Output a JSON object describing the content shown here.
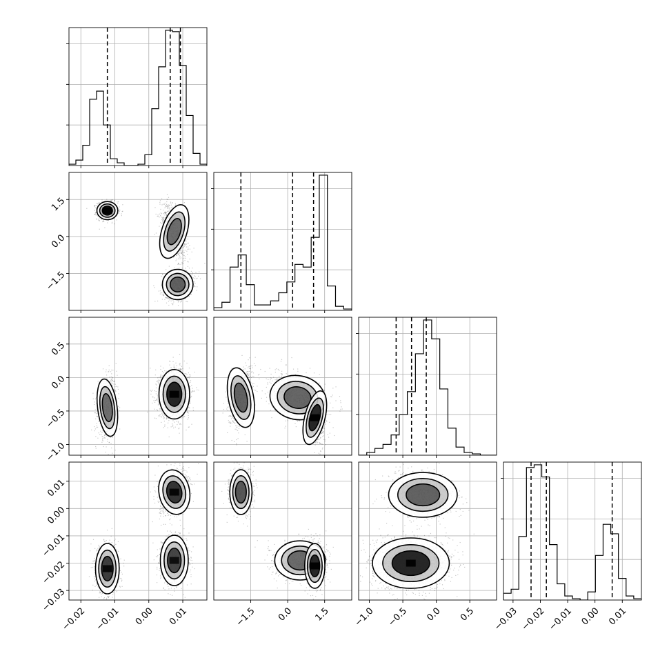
{
  "chart_data": {
    "type": "corner",
    "grid": true,
    "colors": {
      "ink": "#000000",
      "grid": "#b0b0b0",
      "background": "#ffffff"
    },
    "params": [
      {
        "range": [
          -0.0235,
          0.0171
        ],
        "ticks": [
          -0.02,
          -0.01,
          0.0,
          0.01
        ],
        "tick_labels": [
          "−0.02",
          "−0.01",
          "0.00",
          "0.01"
        ],
        "quantiles": [
          -0.0122,
          0.0063,
          0.0093
        ],
        "hist": [
          0.01,
          0.04,
          0.15,
          0.49,
          0.55,
          0.3,
          0.05,
          0.02,
          0.0,
          0.0,
          0.01,
          0.08,
          0.42,
          0.73,
          1.0,
          0.99,
          0.74,
          0.37,
          0.09,
          0.01
        ]
      },
      {
        "range": [
          -3.0,
          2.6
        ],
        "ticks": [
          -1.5,
          0.0,
          1.5
        ],
        "tick_labels": [
          "−1.5",
          "0.0",
          "1.5"
        ],
        "quantiles": [
          -1.9,
          0.2,
          1.05
        ],
        "hist": [
          0.02,
          0.06,
          0.32,
          0.41,
          0.19,
          0.04,
          0.04,
          0.07,
          0.13,
          0.21,
          0.34,
          0.32,
          0.54,
          1.0,
          0.18,
          0.03,
          0.01
        ]
      },
      {
        "range": [
          -1.16,
          0.9
        ],
        "ticks": [
          -1.0,
          -0.5,
          0.0,
          0.5
        ],
        "tick_labels": [
          "−1.0",
          "−0.5",
          "0.0",
          "0.5"
        ],
        "quantiles": [
          -0.6,
          -0.37,
          -0.15
        ],
        "hist": [
          0.0,
          0.02,
          0.05,
          0.08,
          0.15,
          0.3,
          0.47,
          0.75,
          1.0,
          0.86,
          0.49,
          0.2,
          0.06,
          0.02,
          0.01,
          0.0,
          0.0
        ]
      },
      {
        "range": [
          -0.0335,
          0.017
        ],
        "ticks": [
          -0.03,
          -0.02,
          -0.01,
          0.0,
          0.01
        ],
        "tick_labels": [
          "−0.03",
          "−0.02",
          "−0.01",
          "0.00",
          "0.01"
        ],
        "quantiles": [
          -0.0234,
          -0.0178,
          0.0063
        ],
        "hist": [
          0.05,
          0.08,
          0.47,
          0.98,
          1.0,
          0.91,
          0.41,
          0.12,
          0.03,
          0.01,
          0.0,
          0.06,
          0.33,
          0.56,
          0.49,
          0.16,
          0.03,
          0.01
        ]
      }
    ],
    "blobs": {
      "1-0": [
        {
          "mx": -0.0122,
          "my": 1.05,
          "sx": 0.0015,
          "sy": 0.18,
          "r": 0.0,
          "weight": 0.33,
          "peak": 0.95,
          "levels": 3
        },
        {
          "mx": 0.0075,
          "my": 0.2,
          "sx": 0.0018,
          "sy": 0.55,
          "r": -0.5,
          "weight": 0.35,
          "peak": 0.18,
          "levels": 2
        },
        {
          "mx": 0.0085,
          "my": -1.95,
          "sx": 0.0022,
          "sy": 0.3,
          "r": 0.2,
          "weight": 0.32,
          "peak": 0.3,
          "levels": 3
        }
      ],
      "2-0": [
        {
          "mx": -0.0122,
          "my": -0.45,
          "sx": 0.0014,
          "sy": 0.21,
          "r": 0.2,
          "weight": 0.33,
          "peak": 0.15,
          "levels": 1
        },
        {
          "mx": 0.0075,
          "my": -0.25,
          "sx": 0.0022,
          "sy": 0.18,
          "r": 0.0,
          "weight": 0.67,
          "peak": 0.95,
          "levels": 3
        }
      ],
      "2-1": [
        {
          "mx": -1.9,
          "my": -0.3,
          "sx": 0.25,
          "sy": 0.22,
          "r": 0.3,
          "weight": 0.33,
          "peak": 0.3,
          "levels": 2
        },
        {
          "mx": 0.4,
          "my": -0.3,
          "sx": 0.55,
          "sy": 0.16,
          "r": -0.3,
          "weight": 0.4,
          "peak": 0.25,
          "levels": 2
        },
        {
          "mx": 1.1,
          "my": -0.6,
          "sx": 0.2,
          "sy": 0.2,
          "r": -0.4,
          "weight": 0.27,
          "peak": 0.95,
          "levels": 3
        }
      ],
      "3-0": [
        {
          "mx": 0.0075,
          "my": 0.006,
          "sx": 0.0022,
          "sy": 0.004,
          "r": 0.3,
          "weight": 0.33,
          "peak": 0.8,
          "levels": 3
        },
        {
          "mx": -0.0122,
          "my": -0.022,
          "sx": 0.0017,
          "sy": 0.0045,
          "r": 0.0,
          "weight": 0.33,
          "peak": 0.7,
          "levels": 3
        },
        {
          "mx": 0.0075,
          "my": -0.019,
          "sx": 0.002,
          "sy": 0.0045,
          "r": 0.0,
          "weight": 0.34,
          "peak": 0.6,
          "levels": 3
        }
      ],
      "3-1": [
        {
          "mx": -1.9,
          "my": 0.006,
          "sx": 0.22,
          "sy": 0.004,
          "r": 0.0,
          "weight": 0.33,
          "peak": 0.4,
          "levels": 2
        },
        {
          "mx": 0.5,
          "my": -0.019,
          "sx": 0.5,
          "sy": 0.0035,
          "r": 0.0,
          "weight": 0.4,
          "peak": 0.2,
          "levels": 2
        },
        {
          "mx": 1.1,
          "my": -0.021,
          "sx": 0.2,
          "sy": 0.004,
          "r": 0.0,
          "weight": 0.27,
          "peak": 0.95,
          "levels": 3
        }
      ],
      "3-2": [
        {
          "mx": -0.2,
          "my": 0.005,
          "sx": 0.25,
          "sy": 0.004,
          "r": 0.0,
          "weight": 0.33,
          "peak": 0.3,
          "levels": 2
        },
        {
          "mx": -0.38,
          "my": -0.02,
          "sx": 0.28,
          "sy": 0.0045,
          "r": 0.0,
          "weight": 0.67,
          "peak": 0.95,
          "levels": 3
        }
      ]
    }
  }
}
